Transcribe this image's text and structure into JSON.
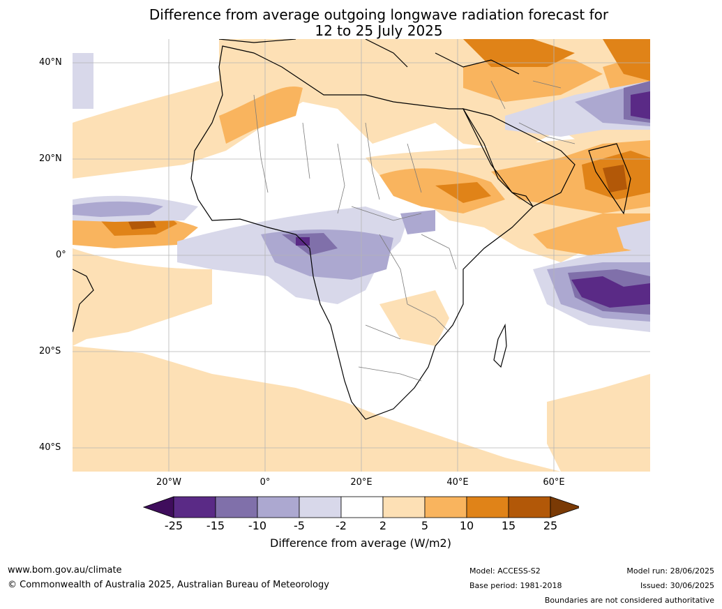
{
  "title_line1": "Difference from average outgoing longwave radiation forecast for",
  "title_line2": "12 to 25 July 2025",
  "lat_labels": [
    "40°N",
    "20°N",
    "0°",
    "20°S",
    "40°S"
  ],
  "lon_labels": [
    "20°W",
    "0°",
    "20°E",
    "40°E",
    "60°E"
  ],
  "colorbar": {
    "ticks": [
      "-25",
      "-15",
      "-10",
      "-5",
      "-2",
      "2",
      "5",
      "10",
      "15",
      "25"
    ],
    "colors": [
      "#3f0d5c",
      "#5a2a86",
      "#8070aa",
      "#aca8d0",
      "#d8d8ea",
      "#ffffff",
      "#fde0b5",
      "#f9b45e",
      "#e08318",
      "#b25808",
      "#7a3a05"
    ],
    "label": "Difference from average (W/m2)"
  },
  "footer": {
    "website": "www.bom.gov.au/climate",
    "copyright": "© Commonwealth of Australia 2025, Australian Bureau of Meteorology",
    "model": "Model: ACCESS-S2",
    "base_period": "Base period: 1981-2018",
    "model_run": "Model run: 28/06/2025",
    "issued": "Issued: 30/06/2025",
    "disclaimer": "Boundaries are not considered authoritative"
  }
}
